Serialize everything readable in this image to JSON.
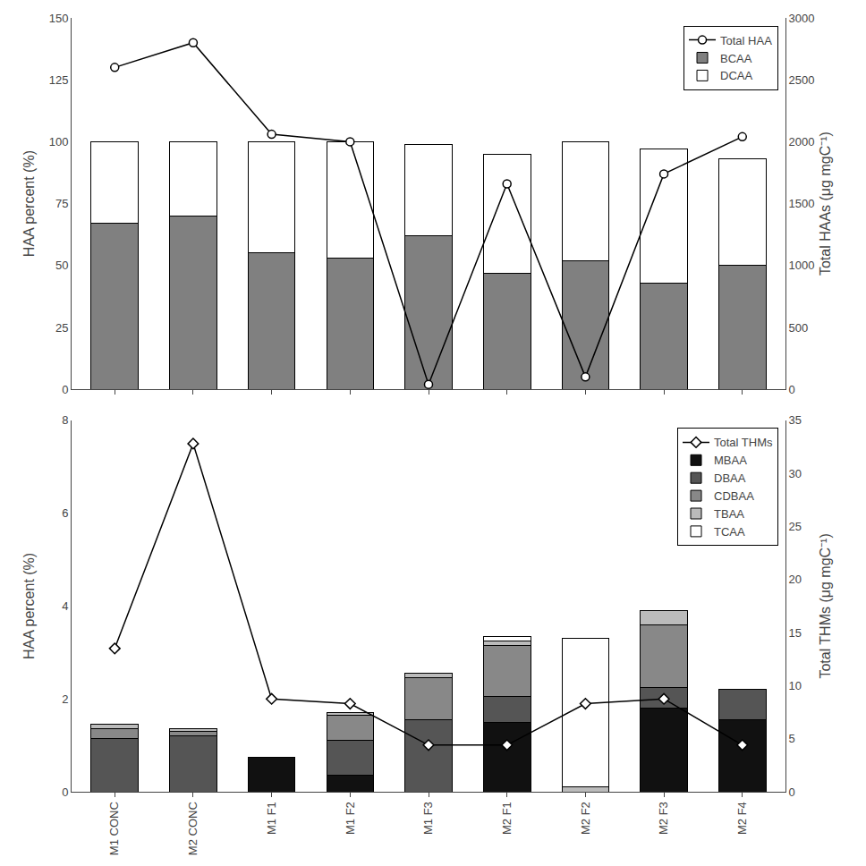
{
  "chart_data": [
    {
      "type": "bar",
      "stacked": true,
      "categories": [
        "M1 CONC",
        "M2 CONC",
        "M1 F1",
        "M1 F2",
        "M1 F3",
        "M2 F1",
        "M2 F2",
        "M2 F3",
        "M2 F4"
      ],
      "tick_labels": "y",
      "ylabel": "HAA percent (%)",
      "y2label": "Total HAAs (μg mgC⁻¹)",
      "ylim": [
        0,
        150
      ],
      "yticks": [
        0,
        25,
        50,
        75,
        100,
        125,
        150
      ],
      "y2lim": [
        0,
        3000
      ],
      "y2ticks": [
        0,
        500,
        1000,
        1500,
        2000,
        2500,
        3000
      ],
      "grid": false,
      "legend": "upper right",
      "series": [
        {
          "name": "BCAA",
          "type": "bar",
          "color": "#808080",
          "values": [
            67,
            70,
            55,
            53,
            62,
            47,
            52,
            43,
            50
          ]
        },
        {
          "name": "DCAA",
          "type": "bar",
          "color": "#ffffff",
          "values": [
            33,
            30,
            45,
            47,
            37,
            48,
            48,
            54,
            43
          ]
        },
        {
          "name": "Total HAA",
          "type": "line",
          "axis": "y2",
          "color": "black",
          "marker": "circle",
          "values": [
            2600,
            2800,
            2060,
            2000,
            40,
            1660,
            100,
            1740,
            2040
          ]
        }
      ]
    },
    {
      "type": "bar",
      "stacked": true,
      "categories": [
        "M1 CONC",
        "M2 CONC",
        "M1 F1",
        "M1 F2",
        "M1 F3",
        "M2 F1",
        "M2 F2",
        "M2 F3",
        "M2 F4"
      ],
      "ylabel": "HAA percent (%)",
      "y2label": "Total THMs (μg mgC⁻¹)",
      "ylim": [
        0,
        8
      ],
      "yticks": [
        0,
        2,
        4,
        6,
        8
      ],
      "y2lim": [
        0,
        35
      ],
      "y2ticks": [
        0,
        5,
        10,
        15,
        20,
        25,
        30,
        35
      ],
      "grid": false,
      "legend": "upper right",
      "series": [
        {
          "name": "MBAA",
          "type": "bar",
          "color": "#111111",
          "values": [
            0.0,
            0.0,
            0.75,
            0.35,
            0.0,
            1.5,
            0.0,
            1.8,
            1.55
          ]
        },
        {
          "name": "DBAA",
          "type": "bar",
          "color": "#555555",
          "values": [
            1.15,
            1.2,
            0.0,
            0.75,
            1.55,
            0.55,
            0.0,
            0.45,
            0.65
          ]
        },
        {
          "name": "CDBAA",
          "type": "bar",
          "color": "#888888",
          "values": [
            0.2,
            0.1,
            0.0,
            0.55,
            0.9,
            1.1,
            0.0,
            1.35,
            0.0
          ]
        },
        {
          "name": "TBAA",
          "type": "bar",
          "color": "#bbbbbb",
          "values": [
            0.1,
            0.05,
            0.0,
            0.05,
            0.1,
            0.1,
            0.1,
            0.3,
            0.0
          ]
        },
        {
          "name": "TCAA",
          "type": "bar",
          "color": "#ffffff",
          "values": [
            0.0,
            0.0,
            0.0,
            0.0,
            0.0,
            0.1,
            3.2,
            0.0,
            0.0
          ]
        },
        {
          "name": "Total THMs",
          "type": "line",
          "axis": "y2",
          "color": "black",
          "marker": "diamond",
          "values": [
            13.5,
            32.8,
            8.75,
            8.3,
            4.4,
            4.4,
            8.3,
            8.75,
            4.4
          ]
        }
      ]
    }
  ]
}
